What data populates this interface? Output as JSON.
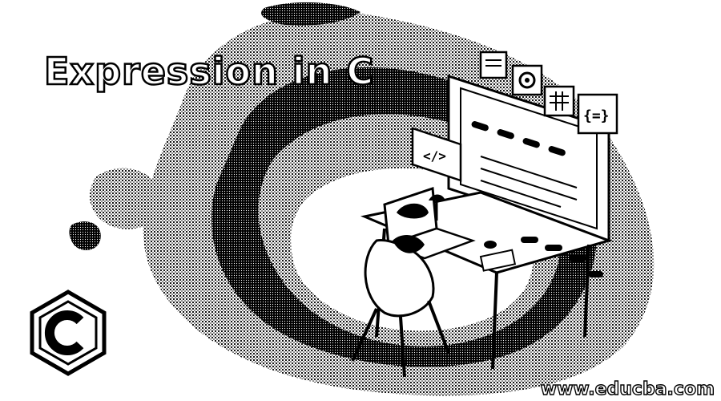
{
  "banner": {
    "title": "Expression in C",
    "footer_url": "www.educba.com"
  },
  "illustration": {
    "subject": "developer-desk-scene",
    "icons": [
      "code-tag-icon",
      "gear-icon",
      "grid-icon",
      "braces-icon",
      "c-language-logo"
    ]
  },
  "colors": {
    "background": "#ffffff",
    "ink": "#000000"
  }
}
